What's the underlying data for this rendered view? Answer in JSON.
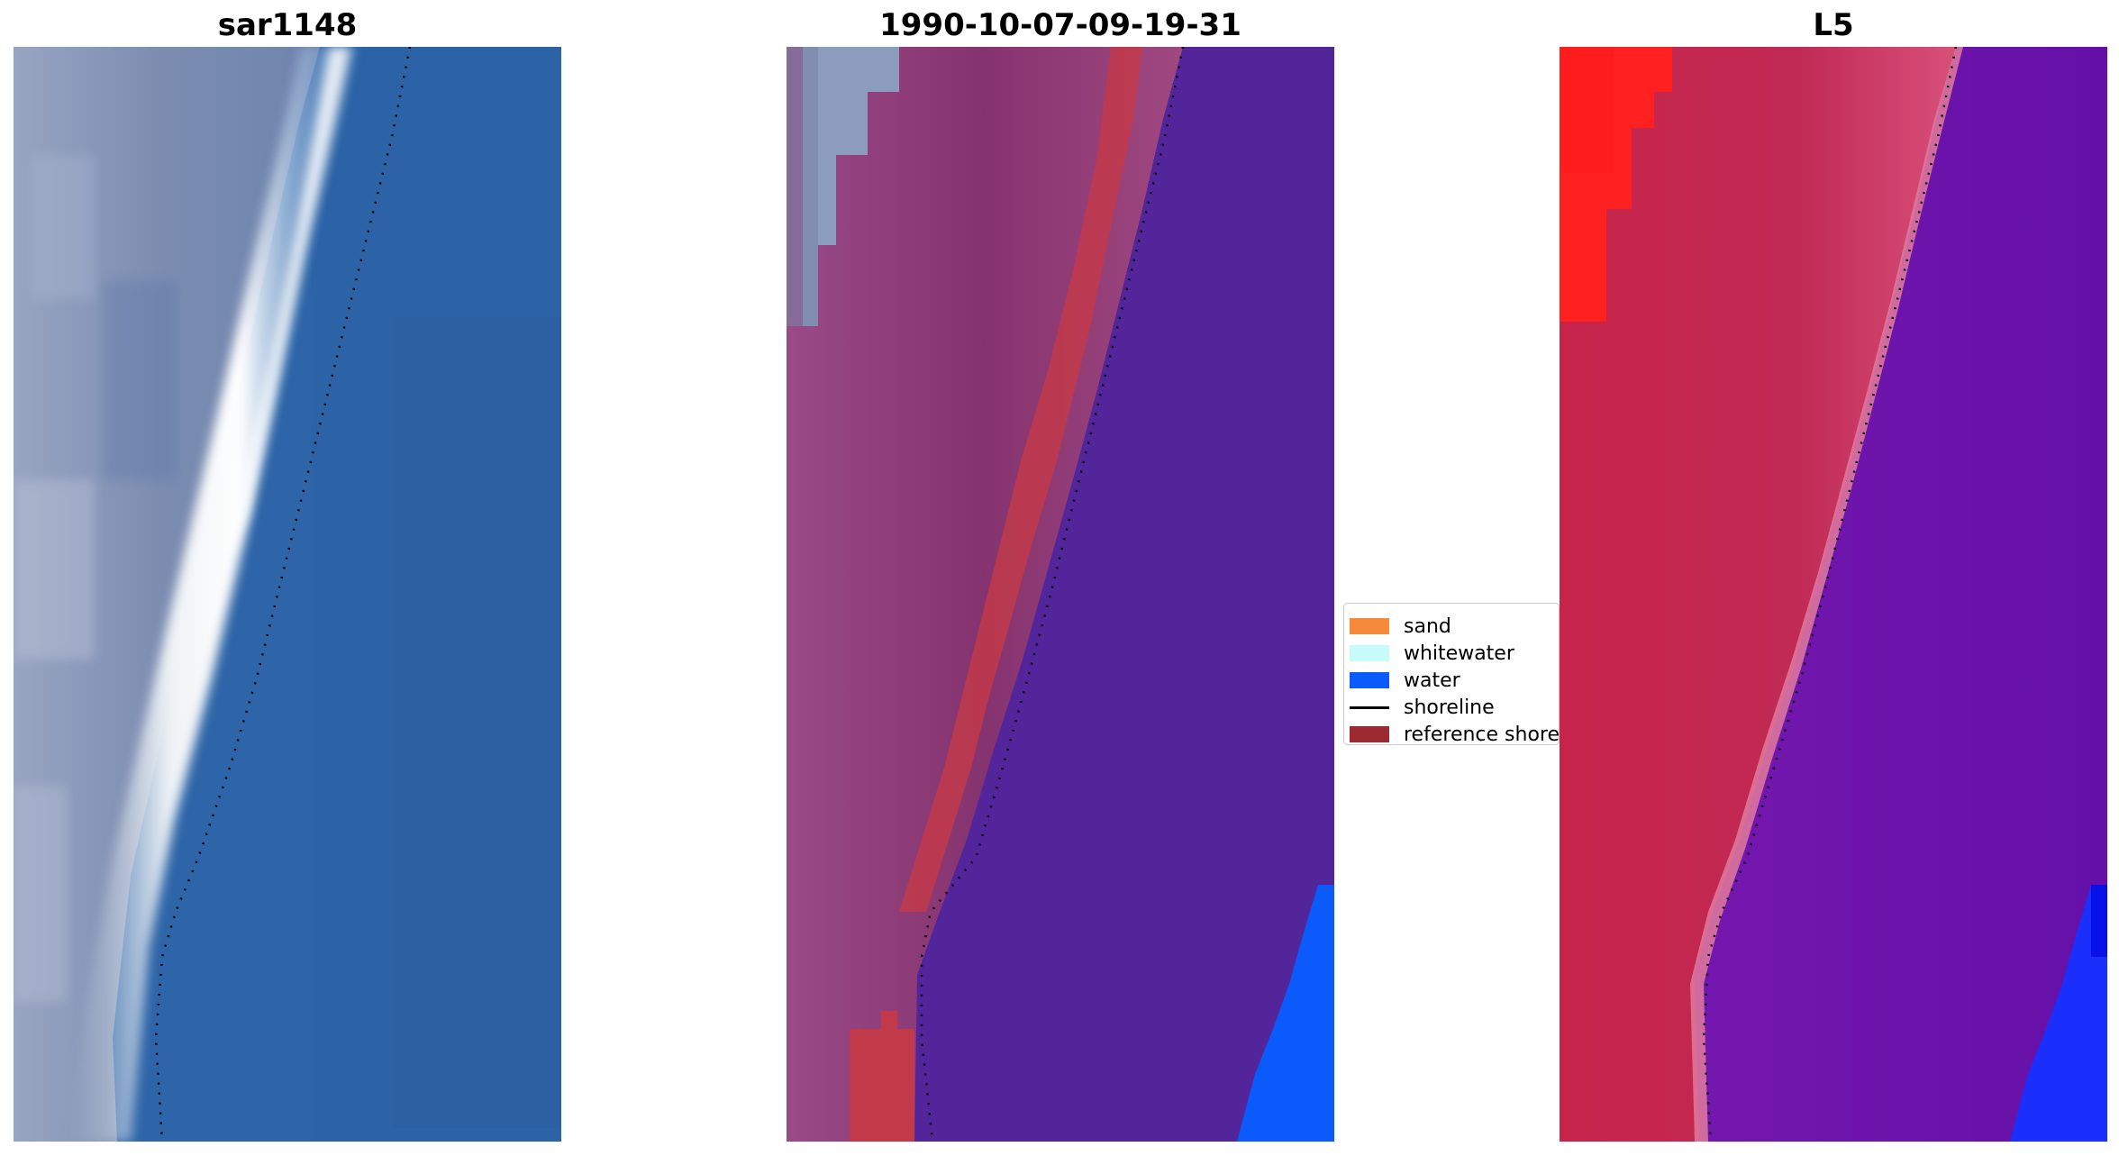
{
  "panels": [
    {
      "title": "sar1148",
      "image": "RGB satellite image tile"
    },
    {
      "title": "1990-10-07-09-19-31",
      "image": "classified image tile"
    },
    {
      "title": "L5",
      "image": "false-color image tile"
    }
  ],
  "legend": {
    "items": [
      {
        "label": "sand",
        "color": "#f58a3c",
        "kind": "patch"
      },
      {
        "label": "whitewater",
        "color": "#c8fcfc",
        "kind": "patch"
      },
      {
        "label": "water",
        "color": "#0a5afc",
        "kind": "patch"
      },
      {
        "label": "shoreline",
        "color": "#000000",
        "kind": "line"
      },
      {
        "label": "reference shoreline",
        "color": "#9b2b30",
        "kind": "patch"
      }
    ]
  },
  "colors": {
    "sar_land": "#7d8fb1",
    "sar_water": "#2e65a8",
    "sar_surf": "#f2f4f6",
    "class_land": "#8a3a76",
    "class_ref": "#c23a4a",
    "class_water": "#53259a",
    "class_blue": "#0a5afc",
    "l5_red": "#ff2020",
    "l5_land": "#c42650",
    "l5_water": "#6a16a6",
    "l5_blue": "#1a2ffc"
  }
}
